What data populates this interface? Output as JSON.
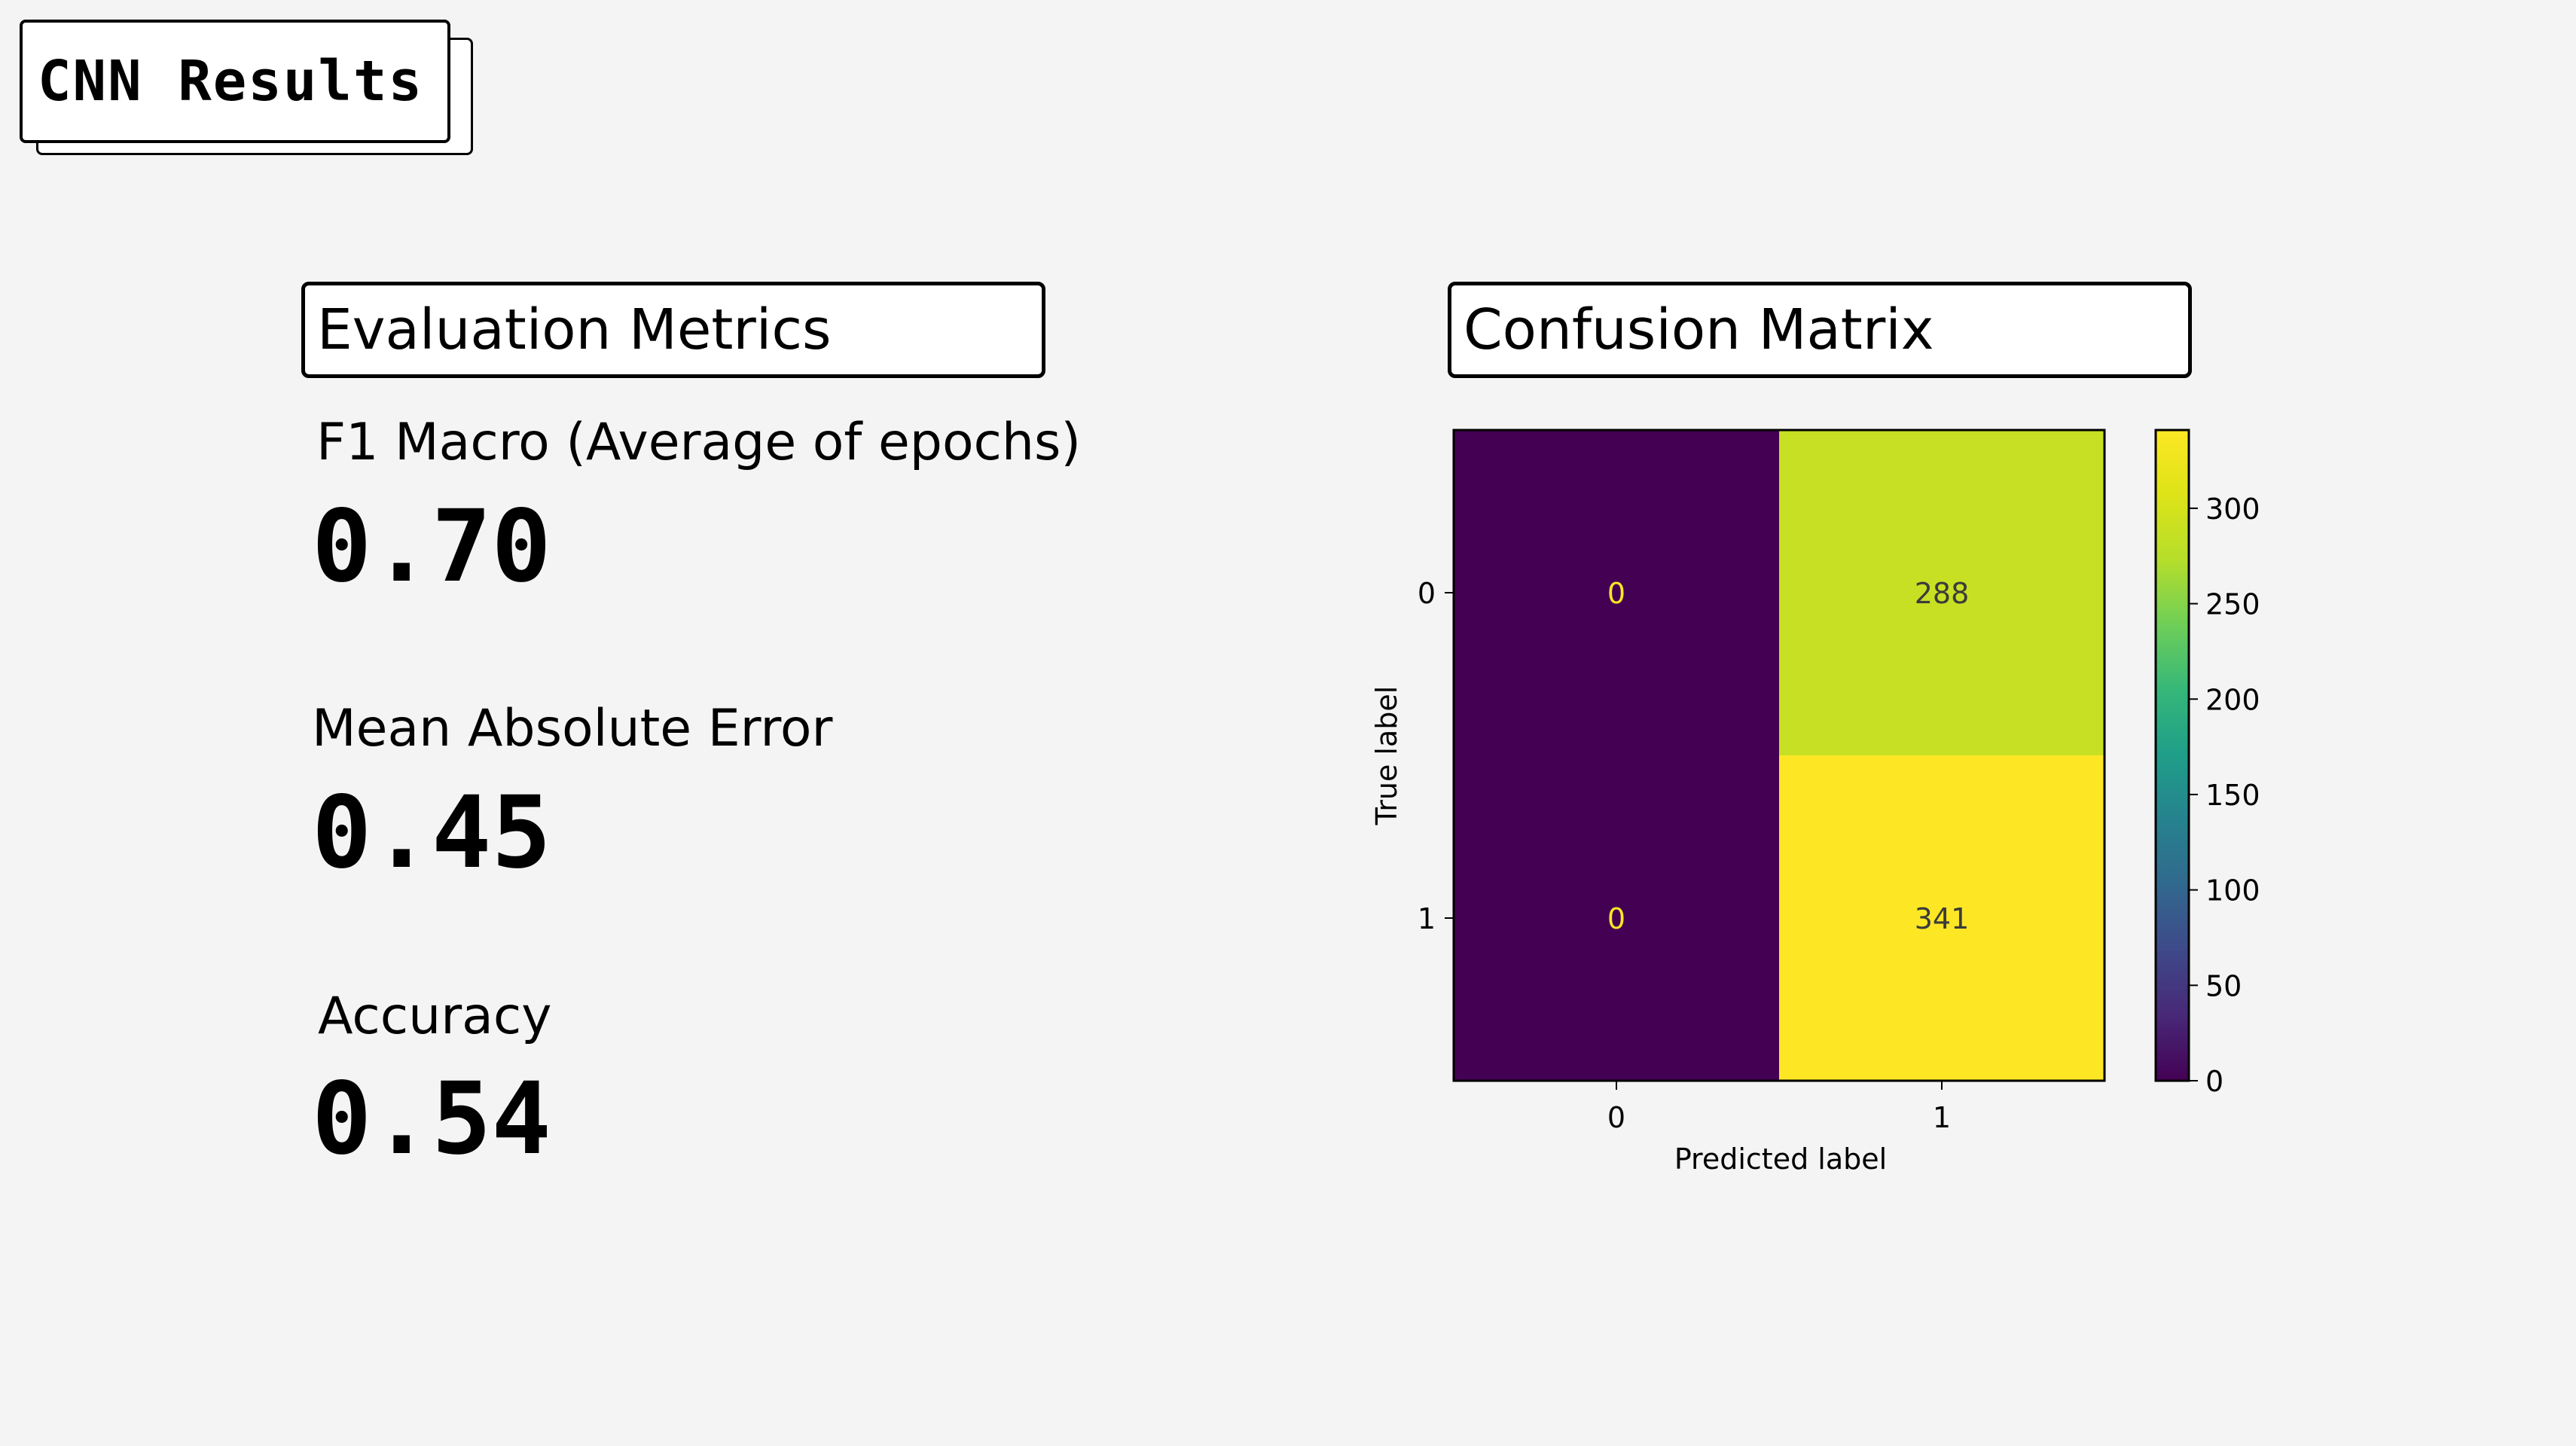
{
  "page": {
    "title": "CNN Results"
  },
  "metrics_section": {
    "header": "Evaluation Metrics",
    "items": [
      {
        "label": "F1 Macro (Average of epochs)",
        "value": "0.70"
      },
      {
        "label": "Mean Absolute Error",
        "value": "0.45"
      },
      {
        "label": "Accuracy",
        "value": "0.54"
      }
    ]
  },
  "matrix_section": {
    "header": "Confusion Matrix"
  },
  "chart_data": {
    "type": "heatmap",
    "title": "",
    "xlabel": "Predicted label",
    "ylabel": "True label",
    "x_categories": [
      "0",
      "1"
    ],
    "y_categories": [
      "0",
      "1"
    ],
    "values": [
      [
        0,
        288
      ],
      [
        0,
        341
      ]
    ],
    "colormap": "viridis",
    "colorbar": {
      "min": 0,
      "max": 341,
      "ticks": [
        "0",
        "50",
        "100",
        "150",
        "200",
        "250",
        "300"
      ]
    },
    "colors": {
      "low": "#440154",
      "high": "#fde725",
      "mid_288": "#a0da39"
    }
  }
}
